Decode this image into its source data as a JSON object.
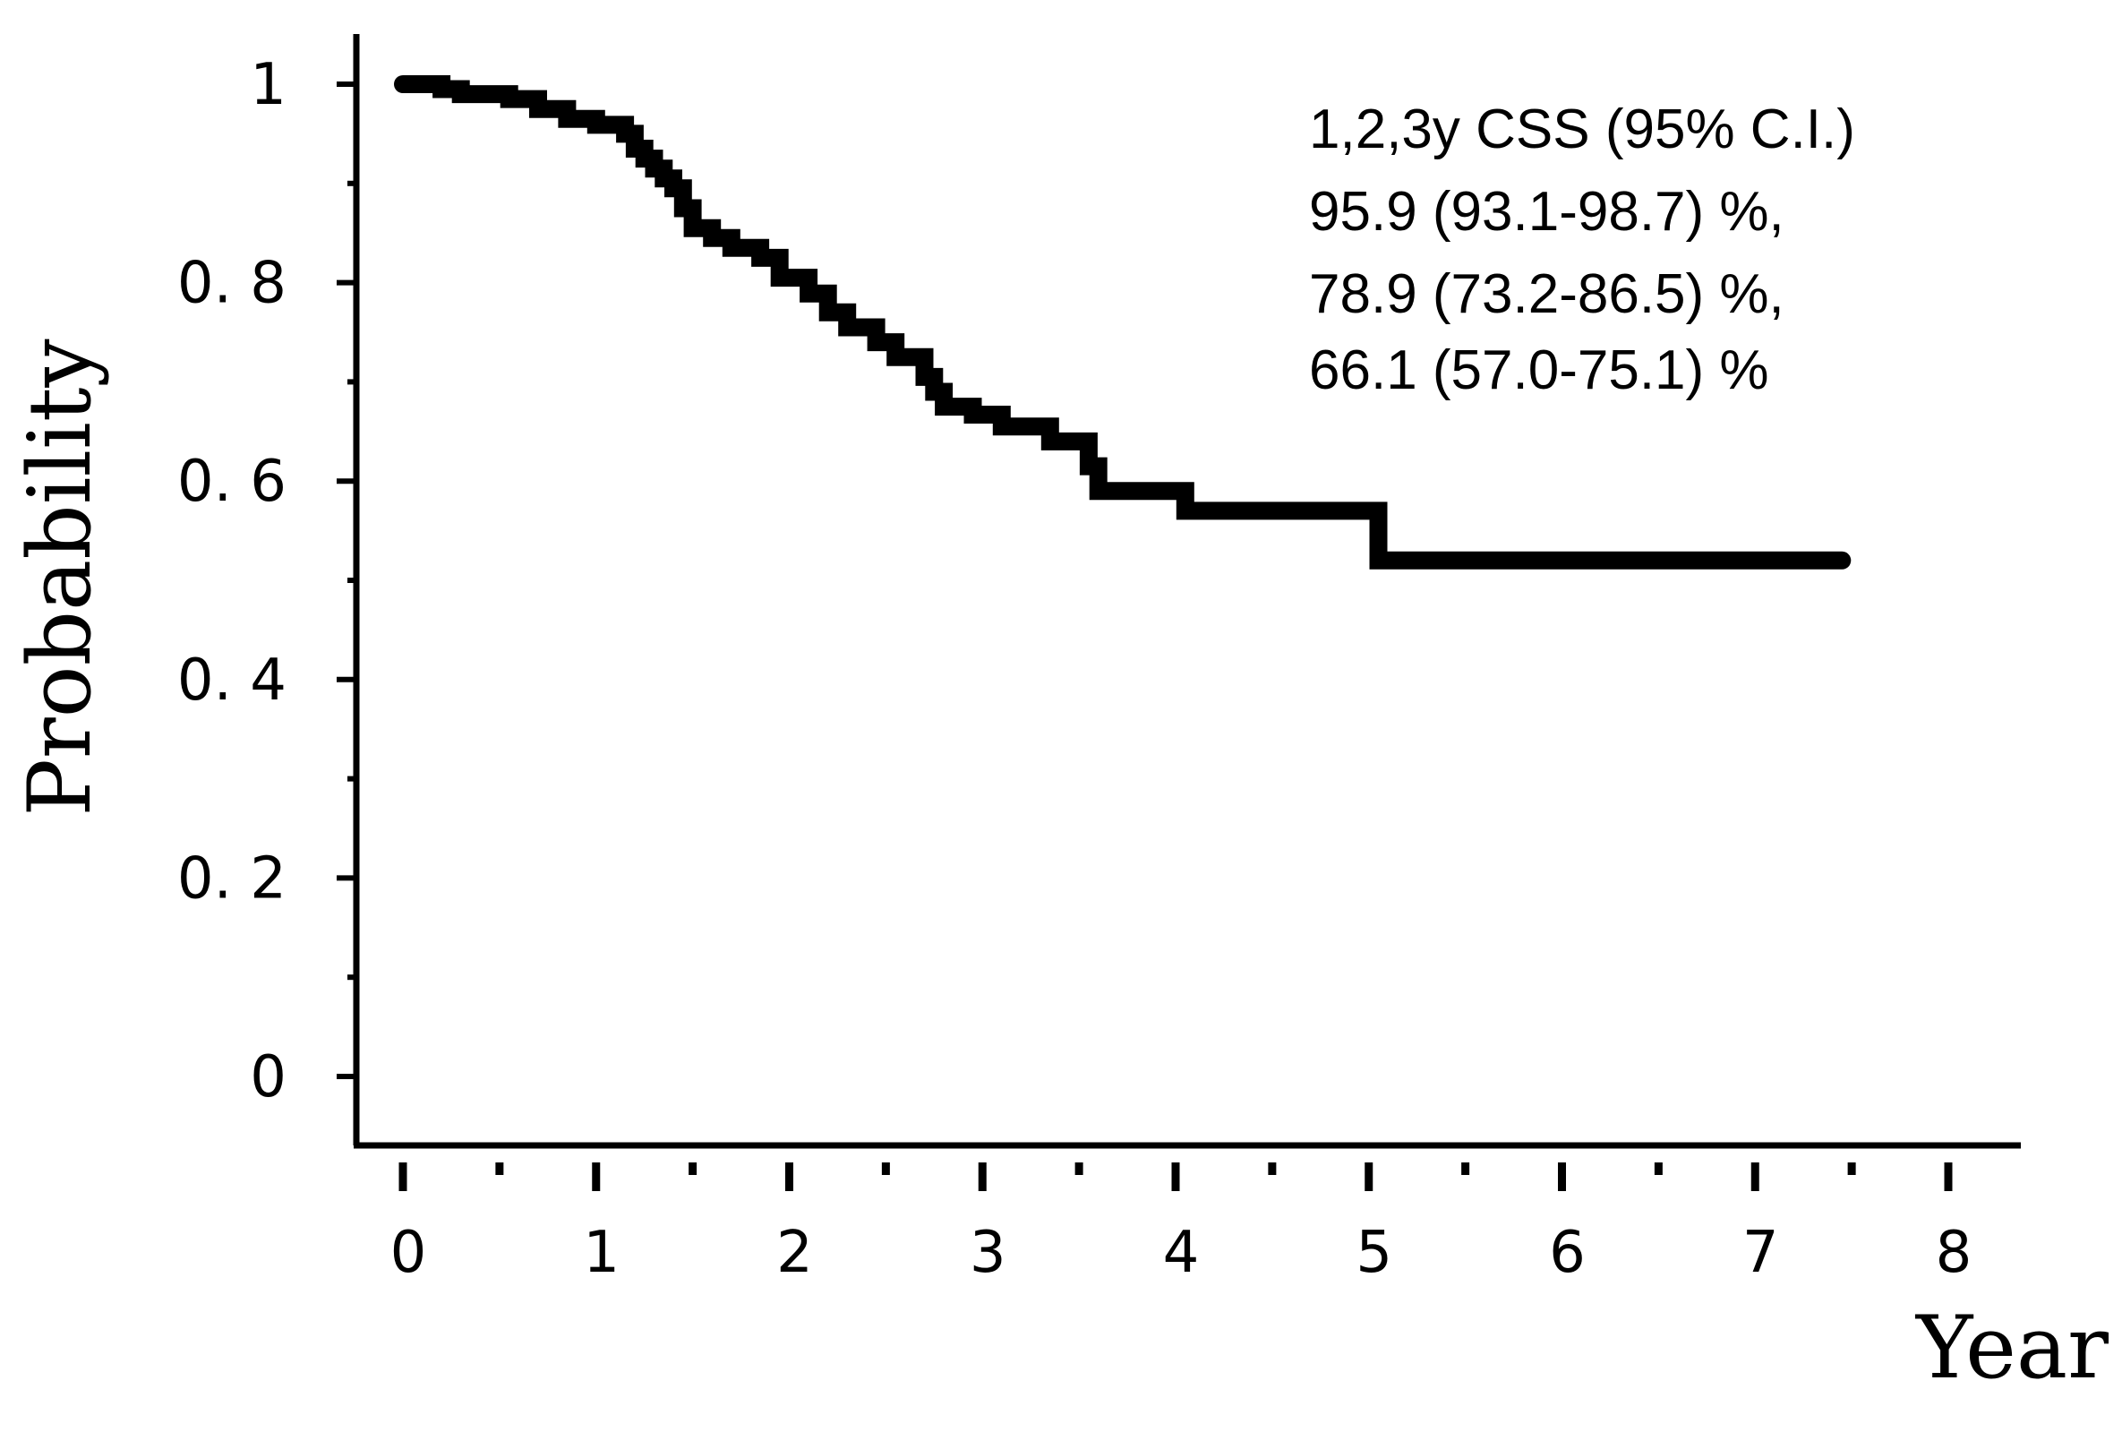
{
  "chart_data": {
    "type": "line",
    "title": "",
    "xlabel": "Year",
    "ylabel": "Probability",
    "xlim": [
      0,
      8
    ],
    "ylim": [
      0,
      1
    ],
    "x_ticks": [
      "0",
      "1",
      "2",
      "3",
      "4",
      "5",
      "6",
      "7",
      "8"
    ],
    "y_ticks": [
      "0",
      "0. 2",
      "0. 4",
      "0. 6",
      "0. 8",
      "1"
    ],
    "grid": false,
    "annotation": {
      "lines": [
        "1,2,3y CSS (95% C.I.)",
        "95.9 (93.1-98.7) %,",
        "78.9 (73.2-86.5) %,",
        "66.1 (57.0-75.1) %"
      ]
    },
    "series": [
      {
        "step": true,
        "color": "#000000",
        "x": [
          0,
          0.2,
          0.3,
          0.55,
          0.7,
          0.85,
          1.0,
          1.15,
          1.2,
          1.25,
          1.3,
          1.35,
          1.4,
          1.45,
          1.5,
          1.6,
          1.7,
          1.85,
          1.95,
          2.1,
          2.2,
          2.3,
          2.45,
          2.55,
          2.7,
          2.75,
          2.8,
          2.95,
          3.1,
          3.35,
          3.55,
          3.6,
          4.05,
          5.05,
          7.45
        ],
        "y": [
          1.0,
          0.995,
          0.99,
          0.985,
          0.975,
          0.965,
          0.959,
          0.95,
          0.935,
          0.925,
          0.915,
          0.905,
          0.895,
          0.875,
          0.855,
          0.845,
          0.835,
          0.825,
          0.805,
          0.789,
          0.77,
          0.755,
          0.74,
          0.725,
          0.705,
          0.69,
          0.675,
          0.667,
          0.655,
          0.64,
          0.615,
          0.59,
          0.57,
          0.52,
          0.52
        ]
      }
    ]
  }
}
